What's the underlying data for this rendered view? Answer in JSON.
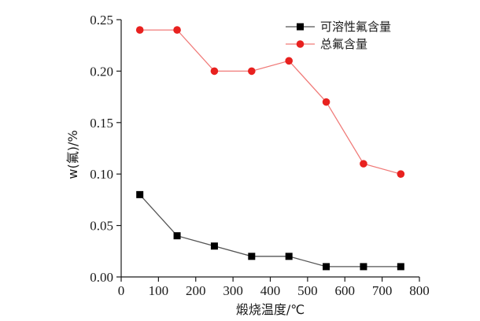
{
  "chart_data": {
    "type": "line",
    "title": "",
    "xlabel": "煅烧温度/℃",
    "ylabel": "w(氟)/%",
    "xlim": [
      0,
      800
    ],
    "ylim": [
      0,
      0.25
    ],
    "xticks": [
      0,
      100,
      200,
      300,
      400,
      500,
      600,
      700,
      800
    ],
    "xtick_labels": [
      "0",
      "100",
      "200",
      "300",
      "400",
      "500",
      "600",
      "700",
      "800"
    ],
    "yticks": [
      0,
      0.05,
      0.1,
      0.15,
      0.2,
      0.25
    ],
    "ytick_labels": [
      "0.00",
      "0.05",
      "0.10",
      "0.15",
      "0.20",
      "0.25"
    ],
    "grid": false,
    "legend_position": "top-right",
    "x": [
      50,
      150,
      250,
      350,
      450,
      550,
      650,
      750
    ],
    "series": [
      {
        "name": "可溶性氟含量",
        "color": "#000000",
        "line_color": "#555555",
        "marker": "square",
        "values": [
          0.08,
          0.04,
          0.03,
          0.02,
          0.02,
          0.01,
          0.01,
          0.01
        ]
      },
      {
        "name": "总氟含量",
        "color": "#e8211f",
        "line_color": "#f07a78",
        "marker": "circle",
        "values": [
          0.24,
          0.24,
          0.2,
          0.2,
          0.21,
          0.17,
          0.11,
          0.1
        ]
      }
    ]
  }
}
